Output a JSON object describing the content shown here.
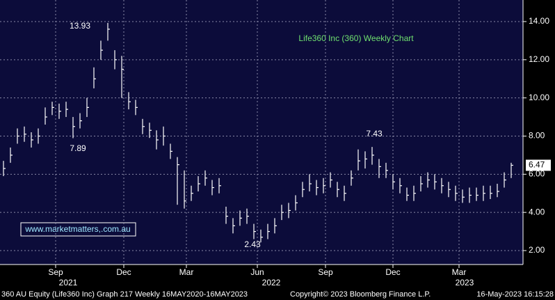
{
  "chart_data": {
    "type": "ohlc",
    "title": "Life360 Inc (360) Weekly Chart",
    "series": [
      {
        "name": "360 AU Equity",
        "color": "#ffffff",
        "close": [
          6.3,
          7.0,
          8.0,
          8.1,
          7.8,
          8.0,
          9.0,
          9.5,
          9.3,
          9.4,
          8.5,
          8.8,
          9.5,
          11.0,
          12.5,
          13.6,
          12.0,
          11.5,
          9.8,
          9.5,
          8.5,
          8.3,
          7.8,
          8.0,
          7.2,
          6.5,
          4.6,
          5.0,
          5.5,
          5.8,
          5.3,
          5.4,
          3.8,
          3.3,
          3.7,
          3.8,
          3.0,
          2.7,
          3.0,
          3.3,
          4.0,
          4.1,
          4.5,
          5.2,
          5.5,
          5.3,
          5.4,
          5.7,
          5.2,
          5.0,
          5.8,
          6.7,
          6.8,
          7.0,
          6.4,
          6.2,
          5.6,
          5.4,
          4.9,
          5.0,
          5.5,
          5.7,
          5.6,
          5.4,
          5.2,
          5.0,
          4.8,
          4.9,
          4.9,
          5.0,
          5.0,
          5.1,
          5.7,
          6.47
        ],
        "high": [
          6.7,
          7.4,
          8.4,
          8.5,
          8.2,
          8.4,
          9.5,
          9.8,
          9.7,
          9.8,
          9.0,
          9.2,
          10.0,
          11.6,
          13.0,
          13.93,
          12.5,
          12.2,
          10.3,
          9.9,
          8.9,
          8.7,
          8.3,
          8.5,
          7.6,
          6.9,
          6.2,
          5.4,
          5.9,
          6.2,
          5.7,
          5.8,
          4.3,
          3.7,
          4.1,
          4.2,
          3.4,
          3.1,
          3.4,
          3.7,
          4.4,
          4.5,
          4.9,
          5.6,
          6.0,
          5.7,
          5.8,
          6.1,
          5.6,
          5.4,
          6.2,
          7.3,
          7.2,
          7.43,
          6.8,
          6.6,
          6.0,
          5.8,
          5.3,
          5.4,
          5.9,
          6.1,
          6.0,
          5.8,
          5.6,
          5.4,
          5.2,
          5.3,
          5.3,
          5.4,
          5.4,
          5.5,
          6.1,
          6.6
        ],
        "low": [
          5.9,
          6.6,
          7.6,
          7.7,
          7.4,
          7.6,
          8.6,
          9.1,
          8.9,
          9.0,
          7.89,
          8.4,
          9.0,
          10.5,
          12.0,
          13.0,
          11.5,
          10.0,
          9.4,
          9.1,
          8.1,
          7.9,
          7.3,
          7.5,
          6.8,
          4.4,
          4.2,
          4.6,
          5.1,
          5.4,
          4.9,
          5.0,
          3.4,
          2.9,
          3.3,
          3.4,
          2.6,
          2.43,
          2.6,
          2.9,
          3.6,
          3.7,
          4.1,
          4.8,
          5.1,
          4.9,
          5.0,
          5.3,
          4.8,
          4.6,
          5.4,
          6.2,
          6.3,
          6.5,
          5.8,
          5.8,
          5.2,
          5.0,
          4.6,
          4.6,
          5.1,
          5.3,
          5.2,
          5.0,
          4.8,
          4.6,
          4.5,
          4.5,
          4.6,
          4.6,
          4.7,
          4.8,
          5.3,
          5.8
        ]
      }
    ],
    "last_price_label": "6.47",
    "annotations": [
      "13.93",
      "7.89",
      "2.43",
      "7.43"
    ],
    "watermark": "www.marketmatters,.com.au",
    "ylim": [
      1.27,
      15.13
    ],
    "yticks": [
      {
        "value": 2,
        "label": "2.00"
      },
      {
        "value": 4,
        "label": "4.00"
      },
      {
        "value": 6,
        "label": "6.00"
      },
      {
        "value": 8,
        "label": "8.00"
      },
      {
        "value": 10,
        "label": "10.00"
      },
      {
        "value": 12,
        "label": "12.00"
      },
      {
        "value": 14,
        "label": "14.00"
      }
    ],
    "xlim": [
      -0.5,
      74.7
    ],
    "xticks": [
      {
        "value": 7.5,
        "label": "Sep"
      },
      {
        "value": 17.3,
        "label": "Dec"
      },
      {
        "value": 26.3,
        "label": "Mar"
      },
      {
        "value": 36.5,
        "label": "Jun"
      },
      {
        "value": 46.3,
        "label": "Sep"
      },
      {
        "value": 56,
        "label": "Dec"
      },
      {
        "value": 65.5,
        "label": "Mar"
      }
    ],
    "year_labels": [
      {
        "value": 9.3,
        "label": "2021"
      },
      {
        "value": 38.5,
        "label": "2022"
      },
      {
        "value": 66.3,
        "label": "2023"
      }
    ],
    "grid": true,
    "footer": {
      "left": "360 AU Equity (Life360 Inc) Graph 217  Weekly 16MAY2020-16MAY2023",
      "center": "Copyright© 2023 Bloomberg Finance L.P.",
      "right": "16-May-2023 16:15:28"
    }
  }
}
